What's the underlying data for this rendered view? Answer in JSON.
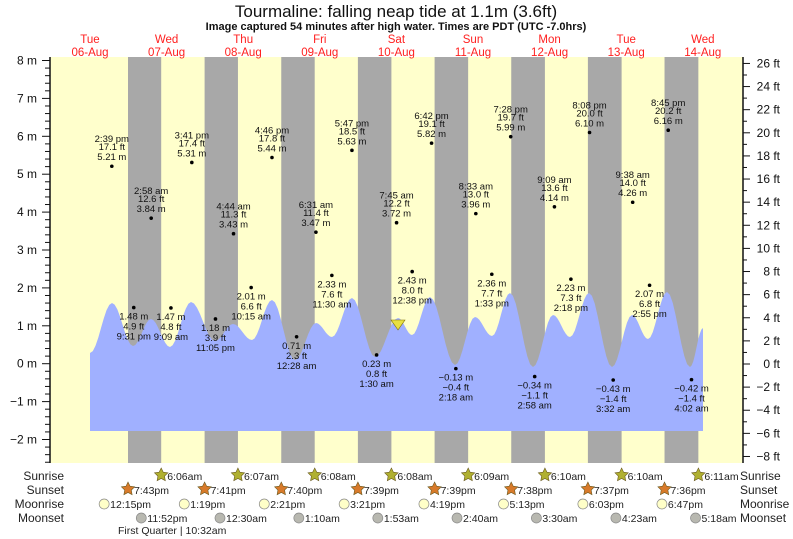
{
  "title": "Tourmaline: falling  neap tide at 1.1m (3.6ft)",
  "subtitle": "Image captured 54 minutes after high water. Times are PDT (UTC -7.0hrs)",
  "colors": {
    "day": "#ffffcc",
    "night": "#a8a8a8",
    "water": "#a0b0ff",
    "date_label": "#ff2020",
    "sunrise": "#b0b030",
    "sunset": "#d87a2a",
    "moonrise": "#ffffc8",
    "moonset": "#b8b8b0",
    "current_marker": "#e8e040"
  },
  "chart_data": {
    "type": "area",
    "title": "Tourmaline: falling  neap tide at 1.1m (3.6ft)",
    "days": [
      {
        "dow": "Tue",
        "date": "06-Aug"
      },
      {
        "dow": "Wed",
        "date": "07-Aug"
      },
      {
        "dow": "Thu",
        "date": "08-Aug"
      },
      {
        "dow": "Fri",
        "date": "09-Aug"
      },
      {
        "dow": "Sat",
        "date": "10-Aug"
      },
      {
        "dow": "Sun",
        "date": "11-Aug"
      },
      {
        "dow": "Mon",
        "date": "12-Aug"
      },
      {
        "dow": "Tue",
        "date": "13-Aug"
      },
      {
        "dow": "Wed",
        "date": "14-Aug"
      }
    ],
    "y_left": {
      "unit": "m",
      "range": [
        -2,
        8
      ],
      "ticks": [
        "8 m",
        "7 m",
        "6 m",
        "5 m",
        "4 m",
        "3 m",
        "2 m",
        "1 m",
        "0 m",
        "−1 m",
        "−2 m"
      ]
    },
    "y_right": {
      "unit": "ft",
      "range": [
        -8,
        26
      ],
      "ticks": [
        "26 ft",
        "24 ft",
        "22 ft",
        "20 ft",
        "18 ft",
        "16 ft",
        "14 ft",
        "12 ft",
        "10 ft",
        "8 ft",
        "6 ft",
        "4 ft",
        "2 ft",
        "0 ft",
        "−2 ft",
        "−4 ft",
        "−6 ft",
        "−8 ft"
      ]
    },
    "tides": [
      {
        "day": 0,
        "time": "2:39 pm",
        "ft": "17.1 ft",
        "m": "5.21 m",
        "value_m": 5.21
      },
      {
        "day": 0,
        "time": "9:31 pm",
        "ft": "4.9 ft",
        "m": "1.48 m",
        "value_m": 1.48
      },
      {
        "day": 1,
        "time": "2:58 am",
        "ft": "12.6 ft",
        "m": "3.84 m",
        "value_m": 3.84
      },
      {
        "day": 1,
        "time": "9:09 am",
        "ft": "4.8 ft",
        "m": "1.47 m",
        "value_m": 1.47
      },
      {
        "day": 1,
        "time": "3:41 pm",
        "ft": "17.4 ft",
        "m": "5.31 m",
        "value_m": 5.31
      },
      {
        "day": 1,
        "time": "11:05 pm",
        "ft": "3.9 ft",
        "m": "1.18 m",
        "value_m": 1.18
      },
      {
        "day": 2,
        "time": "4:44 am",
        "ft": "11.3 ft",
        "m": "3.43 m",
        "value_m": 3.43
      },
      {
        "day": 2,
        "time": "10:15 am",
        "ft": "6.6 ft",
        "m": "2.01 m",
        "value_m": 2.01
      },
      {
        "day": 2,
        "time": "4:46 pm",
        "ft": "17.8 ft",
        "m": "5.44 m",
        "value_m": 5.44
      },
      {
        "day": 3,
        "time": "12:28 am",
        "ft": "2.3 ft",
        "m": "0.71 m",
        "value_m": 0.71
      },
      {
        "day": 3,
        "time": "6:31 am",
        "ft": "11.4 ft",
        "m": "3.47 m",
        "value_m": 3.47
      },
      {
        "day": 3,
        "time": "11:30 am",
        "ft": "7.6 ft",
        "m": "2.33 m",
        "value_m": 2.33
      },
      {
        "day": 3,
        "time": "5:47 pm",
        "ft": "18.5 ft",
        "m": "5.63 m",
        "value_m": 5.63
      },
      {
        "day": 4,
        "time": "1:30 am",
        "ft": "0.8 ft",
        "m": "0.23 m",
        "value_m": 0.23
      },
      {
        "day": 4,
        "time": "7:45 am",
        "ft": "12.2 ft",
        "m": "3.72 m",
        "value_m": 3.72
      },
      {
        "day": 4,
        "time": "12:38 pm",
        "ft": "8.0 ft",
        "m": "2.43 m",
        "value_m": 2.43
      },
      {
        "day": 4,
        "time": "6:42 pm",
        "ft": "19.1 ft",
        "m": "5.82 m",
        "value_m": 5.82
      },
      {
        "day": 5,
        "time": "2:18 am",
        "ft": "−0.4 ft",
        "m": "−0.13 m",
        "value_m": -0.13
      },
      {
        "day": 5,
        "time": "8:33 am",
        "ft": "13.0 ft",
        "m": "3.96 m",
        "value_m": 3.96
      },
      {
        "day": 5,
        "time": "1:33 pm",
        "ft": "7.7 ft",
        "m": "2.36 m",
        "value_m": 2.36
      },
      {
        "day": 5,
        "time": "7:28 pm",
        "ft": "19.7 ft",
        "m": "5.99 m",
        "value_m": 5.99
      },
      {
        "day": 6,
        "time": "2:58 am",
        "ft": "−1.1 ft",
        "m": "−0.34 m",
        "value_m": -0.34
      },
      {
        "day": 6,
        "time": "9:09 am",
        "ft": "13.6 ft",
        "m": "4.14 m",
        "value_m": 4.14
      },
      {
        "day": 6,
        "time": "2:18 pm",
        "ft": "7.3 ft",
        "m": "2.23 m",
        "value_m": 2.23
      },
      {
        "day": 6,
        "time": "8:08 pm",
        "ft": "20.0 ft",
        "m": "6.10 m",
        "value_m": 6.1
      },
      {
        "day": 7,
        "time": "3:32 am",
        "ft": "−1.4 ft",
        "m": "−0.43 m",
        "value_m": -0.43
      },
      {
        "day": 7,
        "time": "9:38 am",
        "ft": "14.0 ft",
        "m": "4.26 m",
        "value_m": 4.26
      },
      {
        "day": 7,
        "time": "2:55 pm",
        "ft": "6.8 ft",
        "m": "2.07 m",
        "value_m": 2.07
      },
      {
        "day": 7,
        "time": "8:45 pm",
        "ft": "20.2 ft",
        "m": "6.16 m",
        "value_m": 6.16
      },
      {
        "day": 8,
        "time": "4:02 am",
        "ft": "−1.4 ft",
        "m": "−0.42 m",
        "value_m": -0.42
      }
    ]
  },
  "rows": {
    "sunrise": {
      "label": "Sunrise",
      "events": [
        {
          "day": 1,
          "time": "6:06am"
        },
        {
          "day": 2,
          "time": "6:07am"
        },
        {
          "day": 3,
          "time": "6:08am"
        },
        {
          "day": 4,
          "time": "6:08am"
        },
        {
          "day": 5,
          "time": "6:09am"
        },
        {
          "day": 6,
          "time": "6:10am"
        },
        {
          "day": 7,
          "time": "6:10am"
        },
        {
          "day": 8,
          "time": "6:11am"
        }
      ]
    },
    "sunset": {
      "label": "Sunset",
      "events": [
        {
          "day": 0,
          "time": "7:43pm"
        },
        {
          "day": 1,
          "time": "7:41pm"
        },
        {
          "day": 2,
          "time": "7:40pm"
        },
        {
          "day": 3,
          "time": "7:39pm"
        },
        {
          "day": 4,
          "time": "7:39pm"
        },
        {
          "day": 5,
          "time": "7:38pm"
        },
        {
          "day": 6,
          "time": "7:37pm"
        },
        {
          "day": 7,
          "time": "7:36pm"
        }
      ]
    },
    "moonrise": {
      "label": "Moonrise",
      "events": [
        {
          "day": 0,
          "time": "12:15pm"
        },
        {
          "day": 1,
          "time": "1:19pm"
        },
        {
          "day": 2,
          "time": "2:21pm"
        },
        {
          "day": 3,
          "time": "3:21pm"
        },
        {
          "day": 4,
          "time": "4:19pm"
        },
        {
          "day": 5,
          "time": "5:13pm"
        },
        {
          "day": 6,
          "time": "6:03pm"
        },
        {
          "day": 7,
          "time": "6:47pm"
        }
      ]
    },
    "moonset": {
      "label": "Moonset",
      "events": [
        {
          "day": 0,
          "time": "11:52pm"
        },
        {
          "day": 2,
          "time": "12:30am"
        },
        {
          "day": 3,
          "time": "1:10am"
        },
        {
          "day": 4,
          "time": "1:53am"
        },
        {
          "day": 5,
          "time": "2:40am"
        },
        {
          "day": 6,
          "time": "3:30am"
        },
        {
          "day": 7,
          "time": "4:23am"
        },
        {
          "day": 8,
          "time": "5:18am"
        }
      ]
    }
  },
  "moon_phase": "First Quarter | 10:32am"
}
